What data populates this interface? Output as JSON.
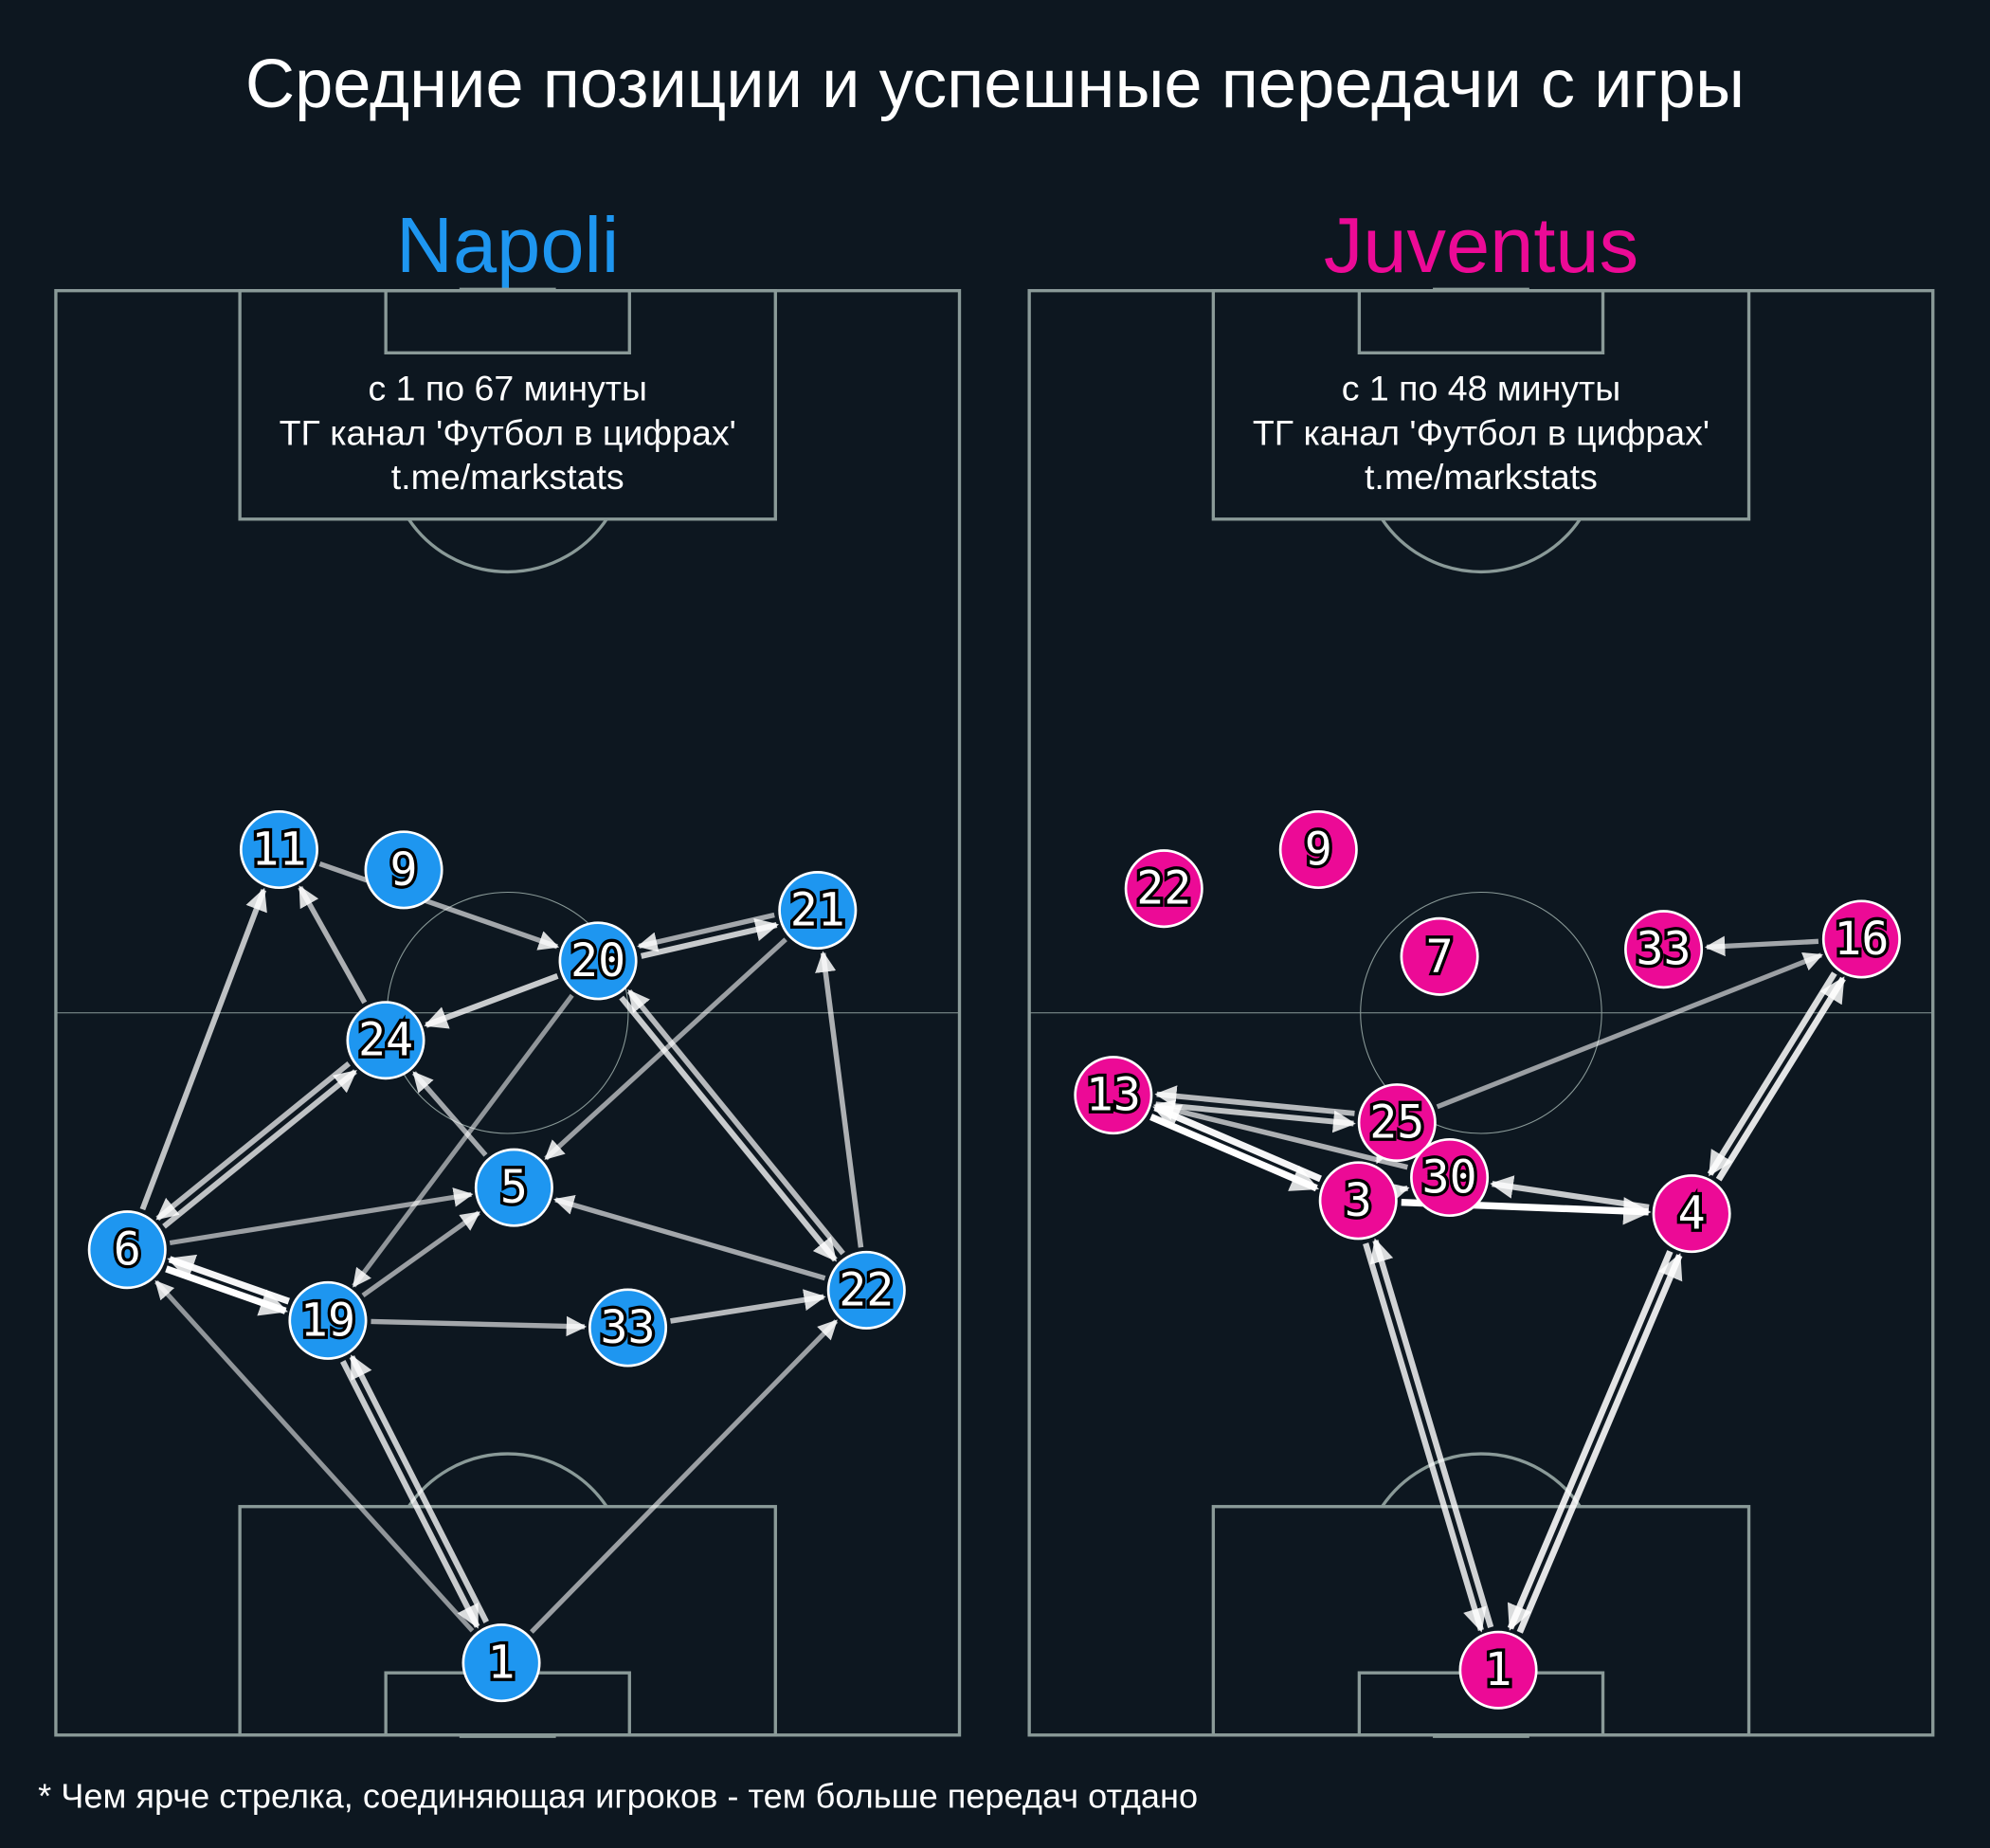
{
  "title": "Средние позиции и успешные передачи с игры",
  "footnote": "* Чем ярче стрелка, соединяющая игроков - тем больше передач отдано",
  "colors": {
    "background": "#0d1720",
    "pitch_lines": "#8a9a98",
    "napoli": "#1e96f0",
    "juventus": "#ec0a96",
    "arrow": "#ffffff"
  },
  "chart_data": {
    "type": "pass-network",
    "coordinate_system": "percent of pitch width (x, left to right) and length (y, own goal to opponent goal)",
    "teams": [
      {
        "name": "Napoli",
        "color": "#1e96f0",
        "info": [
          "с 1 по 67 минуты",
          "ТГ канал 'Футбол в цифрах'",
          "t.me/markstats"
        ],
        "players": [
          {
            "number": "11",
            "x": 24.7,
            "y": 61.3
          },
          {
            "number": "9",
            "x": 38.5,
            "y": 59.9
          },
          {
            "number": "20",
            "x": 60.0,
            "y": 53.6
          },
          {
            "number": "21",
            "x": 84.3,
            "y": 57.1
          },
          {
            "number": "24",
            "x": 36.5,
            "y": 48.1
          },
          {
            "number": "5",
            "x": 50.7,
            "y": 37.9
          },
          {
            "number": "6",
            "x": 7.9,
            "y": 33.6
          },
          {
            "number": "19",
            "x": 30.1,
            "y": 28.7
          },
          {
            "number": "33",
            "x": 63.3,
            "y": 28.2
          },
          {
            "number": "22",
            "x": 89.7,
            "y": 30.8
          },
          {
            "number": "1",
            "x": 49.3,
            "y": 5.0
          }
        ],
        "passes": [
          {
            "from": "11",
            "to": "20",
            "intensity": 0.5
          },
          {
            "from": "20",
            "to": "21",
            "intensity": 0.7
          },
          {
            "from": "21",
            "to": "20",
            "intensity": 0.5
          },
          {
            "from": "20",
            "to": "24",
            "intensity": 0.7
          },
          {
            "from": "24",
            "to": "11",
            "intensity": 0.55
          },
          {
            "from": "6",
            "to": "11",
            "intensity": 0.65
          },
          {
            "from": "6",
            "to": "24",
            "intensity": 0.65
          },
          {
            "from": "24",
            "to": "6",
            "intensity": 0.6
          },
          {
            "from": "5",
            "to": "24",
            "intensity": 0.5
          },
          {
            "from": "21",
            "to": "5",
            "intensity": 0.45
          },
          {
            "from": "20",
            "to": "19",
            "intensity": 0.4
          },
          {
            "from": "20",
            "to": "22",
            "intensity": 0.7
          },
          {
            "from": "22",
            "to": "20",
            "intensity": 0.6
          },
          {
            "from": "22",
            "to": "21",
            "intensity": 0.55
          },
          {
            "from": "6",
            "to": "5",
            "intensity": 0.45
          },
          {
            "from": "19",
            "to": "5",
            "intensity": 0.45
          },
          {
            "from": "6",
            "to": "19",
            "intensity": 1.0
          },
          {
            "from": "19",
            "to": "6",
            "intensity": 0.95
          },
          {
            "from": "19",
            "to": "33",
            "intensity": 0.5
          },
          {
            "from": "33",
            "to": "22",
            "intensity": 0.6
          },
          {
            "from": "22",
            "to": "5",
            "intensity": 0.5
          },
          {
            "from": "1",
            "to": "6",
            "intensity": 0.4
          },
          {
            "from": "1",
            "to": "19",
            "intensity": 0.7
          },
          {
            "from": "19",
            "to": "1",
            "intensity": 0.7
          },
          {
            "from": "1",
            "to": "22",
            "intensity": 0.45
          }
        ]
      },
      {
        "name": "Juventus",
        "color": "#ec0a96",
        "info": [
          "с 1 по 48 минуты",
          "ТГ канал 'Футбол в цифрах'",
          "t.me/markstats"
        ],
        "players": [
          {
            "number": "9",
            "x": 32.0,
            "y": 61.3
          },
          {
            "number": "7",
            "x": 45.4,
            "y": 53.9
          },
          {
            "number": "33",
            "x": 70.2,
            "y": 54.4
          },
          {
            "number": "22",
            "x": 14.9,
            "y": 58.6
          },
          {
            "number": "16",
            "x": 92.1,
            "y": 55.1
          },
          {
            "number": "13",
            "x": 9.3,
            "y": 44.3
          },
          {
            "number": "25",
            "x": 40.7,
            "y": 42.4
          },
          {
            "number": "30",
            "x": 46.5,
            "y": 38.6
          },
          {
            "number": "3",
            "x": 36.4,
            "y": 37.0
          },
          {
            "number": "4",
            "x": 73.3,
            "y": 36.1
          },
          {
            "number": "1",
            "x": 51.9,
            "y": 4.5
          }
        ],
        "passes": [
          {
            "from": "16",
            "to": "33",
            "intensity": 0.5
          },
          {
            "from": "25",
            "to": "16",
            "intensity": 0.45
          },
          {
            "from": "13",
            "to": "25",
            "intensity": 0.65
          },
          {
            "from": "25",
            "to": "13",
            "intensity": 0.6
          },
          {
            "from": "30",
            "to": "13",
            "intensity": 0.55
          },
          {
            "from": "13",
            "to": "3",
            "intensity": 1.0
          },
          {
            "from": "3",
            "to": "13",
            "intensity": 0.95
          },
          {
            "from": "25",
            "to": "3",
            "intensity": 0.6
          },
          {
            "from": "3",
            "to": "30",
            "intensity": 0.6
          },
          {
            "from": "3",
            "to": "4",
            "intensity": 1.0
          },
          {
            "from": "4",
            "to": "30",
            "intensity": 0.7
          },
          {
            "from": "4",
            "to": "16",
            "intensity": 0.85
          },
          {
            "from": "16",
            "to": "4",
            "intensity": 0.8
          },
          {
            "from": "3",
            "to": "1",
            "intensity": 0.75
          },
          {
            "from": "1",
            "to": "3",
            "intensity": 0.75
          },
          {
            "from": "1",
            "to": "4",
            "intensity": 0.85
          },
          {
            "from": "4",
            "to": "1",
            "intensity": 0.85
          }
        ]
      }
    ]
  }
}
